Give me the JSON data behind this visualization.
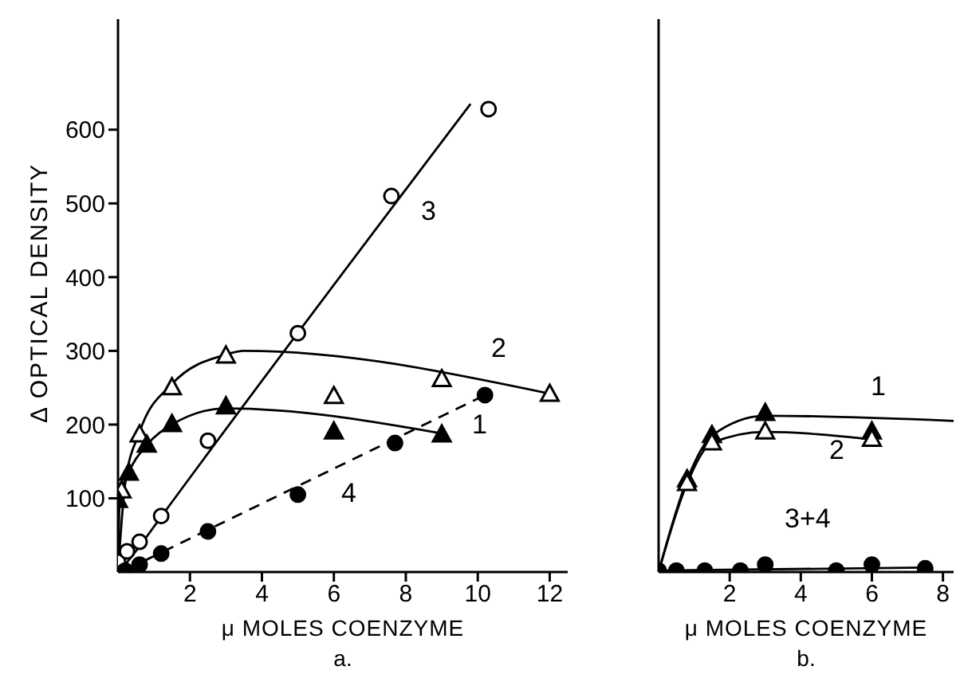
{
  "chart_data": [
    {
      "type": "line",
      "title": "a.",
      "xlabel": "μ MOLES COENZYME",
      "ylabel": "Δ OPTICAL DENSITY",
      "xlim": [
        0,
        12.5
      ],
      "xticks": [
        2,
        4,
        6,
        8,
        10,
        12
      ],
      "ylim": [
        0,
        750
      ],
      "yticks": [
        100,
        200,
        300,
        400,
        500,
        600
      ],
      "grid": false,
      "legend": false,
      "series": [
        {
          "type": "scatter",
          "marker": "circle",
          "color": "#ffffff",
          "x": [
            0,
            0.25,
            0.6,
            1.2,
            2.5,
            5,
            7.6,
            10.3
          ],
          "values": [
            14,
            28,
            41,
            76,
            178,
            324,
            510,
            628
          ]
        },
        {
          "type": "line",
          "line_style": "solid",
          "color": "#000000",
          "x": [
            0.2,
            0.6,
            1.2,
            9.8
          ],
          "values": [
            10,
            35,
            75,
            635
          ]
        },
        {
          "type": "scatter",
          "marker": "triangle",
          "color": "#ffffff",
          "x": [
            0.1,
            0.6,
            1.5,
            3,
            6,
            9,
            12
          ],
          "values": [
            110,
            186,
            250,
            293,
            238,
            261,
            241
          ]
        },
        {
          "type": "line",
          "line_style": "solid",
          "color": "#000000",
          "x": [
            0,
            0.2,
            0.6,
            1.5,
            3,
            3.5,
            12
          ],
          "values": [
            0,
            120,
            190,
            255,
            295,
            300,
            242
          ]
        },
        {
          "type": "scatter",
          "marker": "triangle",
          "color": "#000000",
          "x": [
            0,
            0.3,
            0.8,
            1.5,
            3,
            6,
            9
          ],
          "values": [
            97,
            134,
            172,
            200,
            224,
            190,
            186
          ]
        },
        {
          "type": "line",
          "line_style": "solid",
          "color": "#000000",
          "x": [
            0,
            0.05,
            0.3,
            0.8,
            1.5,
            3,
            9
          ],
          "values": [
            0,
            100,
            135,
            172,
            200,
            222,
            188
          ]
        },
        {
          "type": "scatter",
          "marker": "circle",
          "color": "#000000",
          "x": [
            0.2,
            0.6,
            1.2,
            2.5,
            5,
            7.7,
            10.2
          ],
          "values": [
            2,
            10,
            25,
            55,
            105,
            175,
            240
          ]
        },
        {
          "type": "line",
          "line_style": "dashed",
          "color": "#000000",
          "x": [
            0.3,
            10.2
          ],
          "values": [
            5,
            240
          ]
        }
      ],
      "annotations": [
        "3",
        "2",
        "1",
        "4"
      ]
    },
    {
      "type": "line",
      "title": "b.",
      "xlabel": "μ MOLES COENZYME",
      "xlim": [
        0,
        8.3
      ],
      "xticks": [
        2,
        4,
        6,
        8
      ],
      "ylim": [
        0,
        750
      ],
      "tick_labels": "x",
      "grid": false,
      "legend": false,
      "series": [
        {
          "type": "scatter",
          "marker": "triangle",
          "color": "#000000",
          "x": [
            0.8,
            1.5,
            3,
            6
          ],
          "values": [
            125,
            185,
            215,
            190
          ]
        },
        {
          "type": "line",
          "line_style": "solid",
          "color": "#000000",
          "x": [
            0,
            0.8,
            1.5,
            3,
            8.3
          ],
          "values": [
            0,
            125,
            185,
            212,
            205
          ]
        },
        {
          "type": "scatter",
          "marker": "triangle",
          "color": "#ffffff",
          "x": [
            0.8,
            1.5,
            3,
            6
          ],
          "values": [
            120,
            175,
            190,
            180
          ]
        },
        {
          "type": "line",
          "line_style": "solid",
          "color": "#000000",
          "x": [
            0,
            0.8,
            1.5,
            3,
            6
          ],
          "values": [
            0,
            120,
            175,
            190,
            180
          ]
        },
        {
          "type": "scatter",
          "marker": "circle",
          "color": "#000000",
          "x": [
            0,
            0.5,
            1.3,
            2.3,
            3,
            5,
            6,
            7.5
          ],
          "values": [
            2,
            2,
            2,
            2,
            10,
            2,
            10,
            5
          ]
        },
        {
          "type": "line",
          "line_style": "solid",
          "color": "#000000",
          "x": [
            0,
            7.5
          ],
          "values": [
            2,
            6
          ]
        }
      ],
      "annotations": [
        "1",
        "2",
        "3+4"
      ]
    }
  ]
}
